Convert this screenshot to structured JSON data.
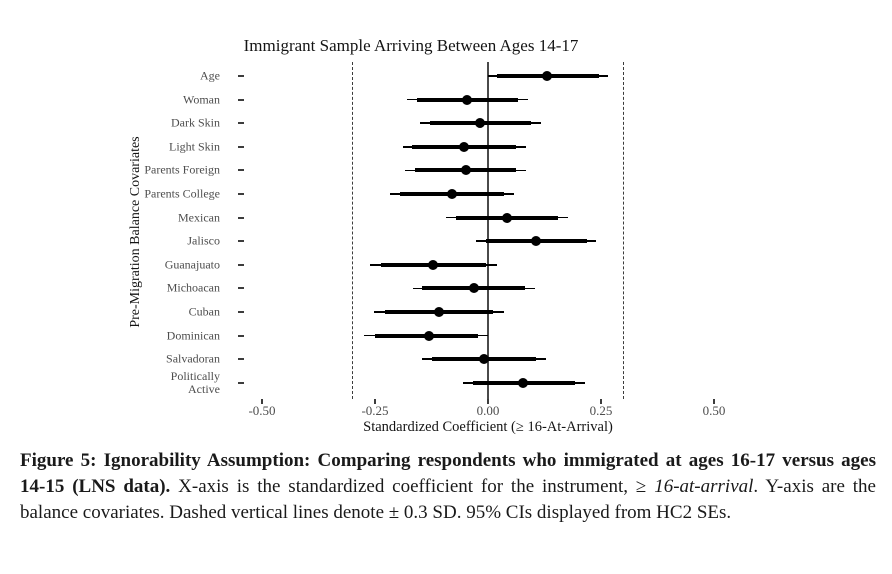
{
  "chart_data": {
    "type": "scatter",
    "subtype": "coefficient-forest-plot",
    "title": "Immigrant Sample Arriving Between Ages 14-17",
    "xlabel": "Standardized Coefficient (≥ 16-At-Arrival)",
    "ylabel": "Pre-Migration Balance Covariates",
    "xlim": [
      -0.56,
      0.56
    ],
    "xticks": [
      -0.5,
      -0.25,
      0,
      0.25,
      0.5
    ],
    "xtick_labels": [
      "-0.50",
      "-0.25",
      "0.00",
      "0.25",
      "0.50"
    ],
    "reference_line_x": 0,
    "dashed_lines_x": [
      -0.3,
      0.3
    ],
    "grid": "off",
    "legend": "none",
    "ci_note": "thin line = 95% CI (HC2 SEs), thick inner line = narrower CI band",
    "categories": [
      "Age",
      "Woman",
      "Dark Skin",
      "Light Skin",
      "Parents Foreign",
      "Parents College",
      "Mexican",
      "Jalisco",
      "Guanajuato",
      "Michoacan",
      "Cuban",
      "Dominican",
      "Salvadoran",
      "Politically\nActive"
    ],
    "points": [
      {
        "label": "Age",
        "estimate": 0.13,
        "ci95": [
          0.0,
          0.265
        ],
        "ci90": [
          0.02,
          0.245
        ]
      },
      {
        "label": "Woman",
        "estimate": -0.046,
        "ci95": [
          -0.18,
          0.089
        ],
        "ci90": [
          -0.158,
          0.066
        ]
      },
      {
        "label": "Dark Skin",
        "estimate": -0.018,
        "ci95": [
          -0.151,
          0.118
        ],
        "ci90": [
          -0.129,
          0.096
        ]
      },
      {
        "label": "Light Skin",
        "estimate": -0.052,
        "ci95": [
          -0.189,
          0.085
        ],
        "ci90": [
          -0.168,
          0.063
        ]
      },
      {
        "label": "Parents Foreign",
        "estimate": -0.048,
        "ci95": [
          -0.184,
          0.085
        ],
        "ci90": [
          -0.162,
          0.063
        ]
      },
      {
        "label": "Parents College",
        "estimate": -0.079,
        "ci95": [
          -0.217,
          0.058
        ],
        "ci90": [
          -0.195,
          0.035
        ]
      },
      {
        "label": "Mexican",
        "estimate": 0.043,
        "ci95": [
          -0.092,
          0.177
        ],
        "ci90": [
          -0.07,
          0.155
        ]
      },
      {
        "label": "Jalisco",
        "estimate": 0.107,
        "ci95": [
          -0.026,
          0.24
        ],
        "ci90": [
          -0.004,
          0.218
        ]
      },
      {
        "label": "Guanajuato",
        "estimate": -0.122,
        "ci95": [
          -0.26,
          0.019
        ],
        "ci90": [
          -0.236,
          -0.004
        ]
      },
      {
        "label": "Michoacan",
        "estimate": -0.031,
        "ci95": [
          -0.167,
          0.103
        ],
        "ci90": [
          -0.145,
          0.081
        ]
      },
      {
        "label": "Cuban",
        "estimate": -0.108,
        "ci95": [
          -0.252,
          0.035
        ],
        "ci90": [
          -0.228,
          0.011
        ]
      },
      {
        "label": "Dominican",
        "estimate": -0.131,
        "ci95": [
          -0.275,
          0.0
        ],
        "ci90": [
          -0.251,
          -0.022
        ]
      },
      {
        "label": "Salvadoran",
        "estimate": -0.009,
        "ci95": [
          -0.145,
          0.129
        ],
        "ci90": [
          -0.123,
          0.107
        ]
      },
      {
        "label": "Politically\nActive",
        "estimate": 0.077,
        "ci95": [
          -0.055,
          0.214
        ],
        "ci90": [
          -0.033,
          0.192
        ]
      }
    ],
    "colors": {
      "point": "#000000",
      "ci_line": "#000000",
      "zero_line": "#4a4a4a",
      "dashed_line": "#3c3c3c",
      "axis_text": "#4d4d4d",
      "title_text": "#141414"
    }
  },
  "caption": {
    "bold": "Figure 5: Ignorability Assumption: Comparing respondents who immigrated at ages 16-17 versus ages 14-15 (LNS data).",
    "normal_1": " X-axis is the standardized coefficient for the instrument, ≥ ",
    "italic": "16-at-arrival",
    "normal_2": ". Y-axis are the balance covariates. Dashed vertical lines denote ± 0.3 SD. 95% CIs displayed from HC2 SEs."
  }
}
